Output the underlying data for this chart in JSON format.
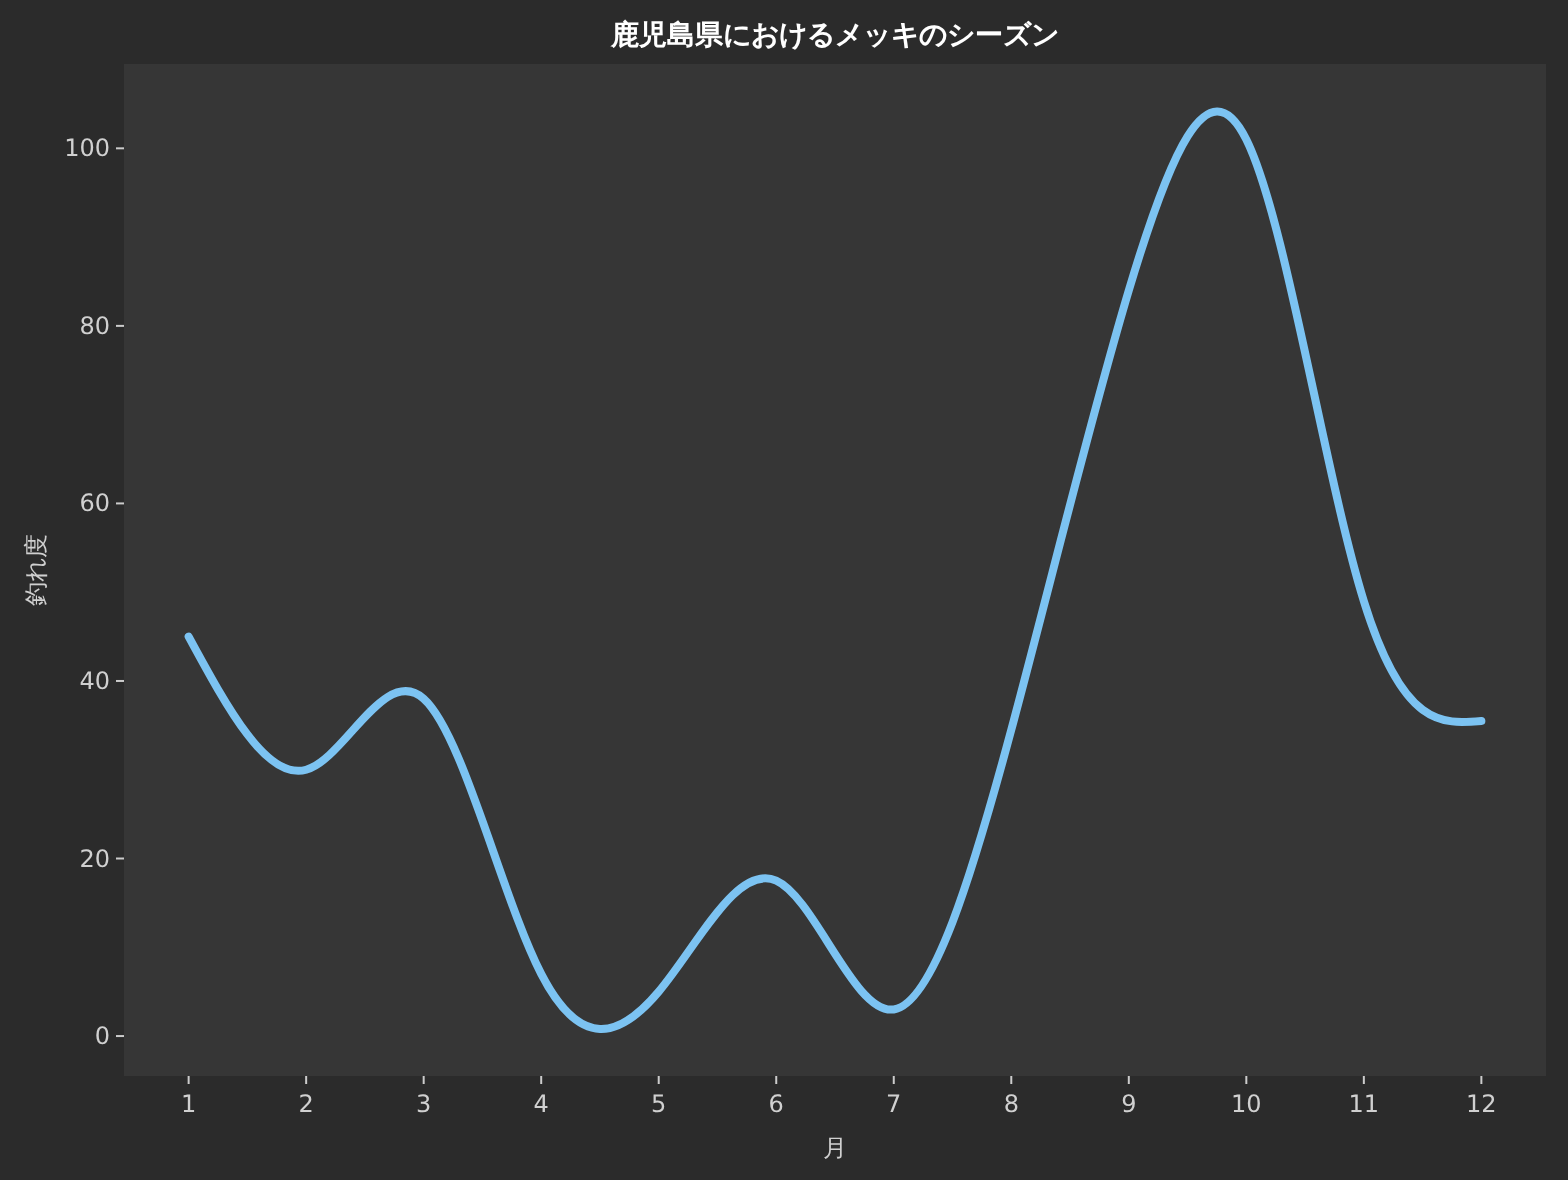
{
  "chart_data": {
    "type": "line",
    "title": "鹿児島県におけるメッキのシーズン",
    "xlabel": "月",
    "ylabel": "釣れ度",
    "x": [
      1,
      2,
      3,
      4,
      5,
      6,
      7,
      8,
      9,
      10,
      11,
      12
    ],
    "series": [
      {
        "color": "#7cc3f2",
        "values": [
          45,
          30,
          38,
          7,
          5,
          17.5,
          3,
          34.5,
          84,
          101,
          49,
          35.5
        ]
      }
    ],
    "xlim": [
      0.45,
      12.55
    ],
    "ylim": [
      -4.5,
      109.5
    ],
    "xticks": [
      1,
      2,
      3,
      4,
      5,
      6,
      7,
      8,
      9,
      10,
      11,
      12
    ],
    "yticks": [
      0,
      20,
      40,
      60,
      80,
      100
    ],
    "grid": false,
    "marker": "none",
    "line_style": "solid"
  }
}
